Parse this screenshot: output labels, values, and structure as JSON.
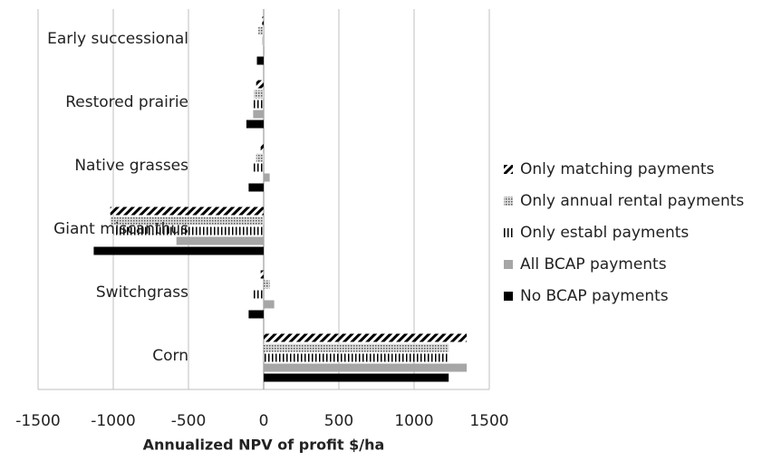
{
  "chart_data": {
    "type": "hbar",
    "xlabel": "Annualized NPV of profit $/ha",
    "categories": [
      "Early successional",
      "Restored prairie",
      "Native grasses",
      "Giant miscanthus",
      "Switchgrass",
      "Corn"
    ],
    "series": [
      {
        "name": "Only matching payments",
        "color": "#000000",
        "pattern": "diagonal",
        "values": [
          -10,
          -50,
          -20,
          -1020,
          -20,
          1350
        ]
      },
      {
        "name": "Only annual rental payments",
        "color": "#7f7f7f",
        "pattern": "dots",
        "values": [
          -35,
          -65,
          -50,
          -1020,
          40,
          1230
        ]
      },
      {
        "name": "Only establ payments",
        "color": "#000000",
        "pattern": "vertical",
        "values": [
          -10,
          -80,
          -70,
          -1000,
          -80,
          1230
        ]
      },
      {
        "name": "All BCAP payments",
        "color": "#a6a6a6",
        "pattern": "solid",
        "values": [
          5,
          -70,
          40,
          -580,
          70,
          1350
        ]
      },
      {
        "name": "No BCAP payments",
        "color": "#000000",
        "pattern": "solid",
        "values": [
          -45,
          -115,
          -100,
          -1130,
          -100,
          1230
        ]
      }
    ],
    "xlim": [
      -1500,
      1500
    ],
    "xticks": [
      -1500,
      -1000,
      -500,
      0,
      500,
      1000,
      1500
    ],
    "grid": true
  }
}
